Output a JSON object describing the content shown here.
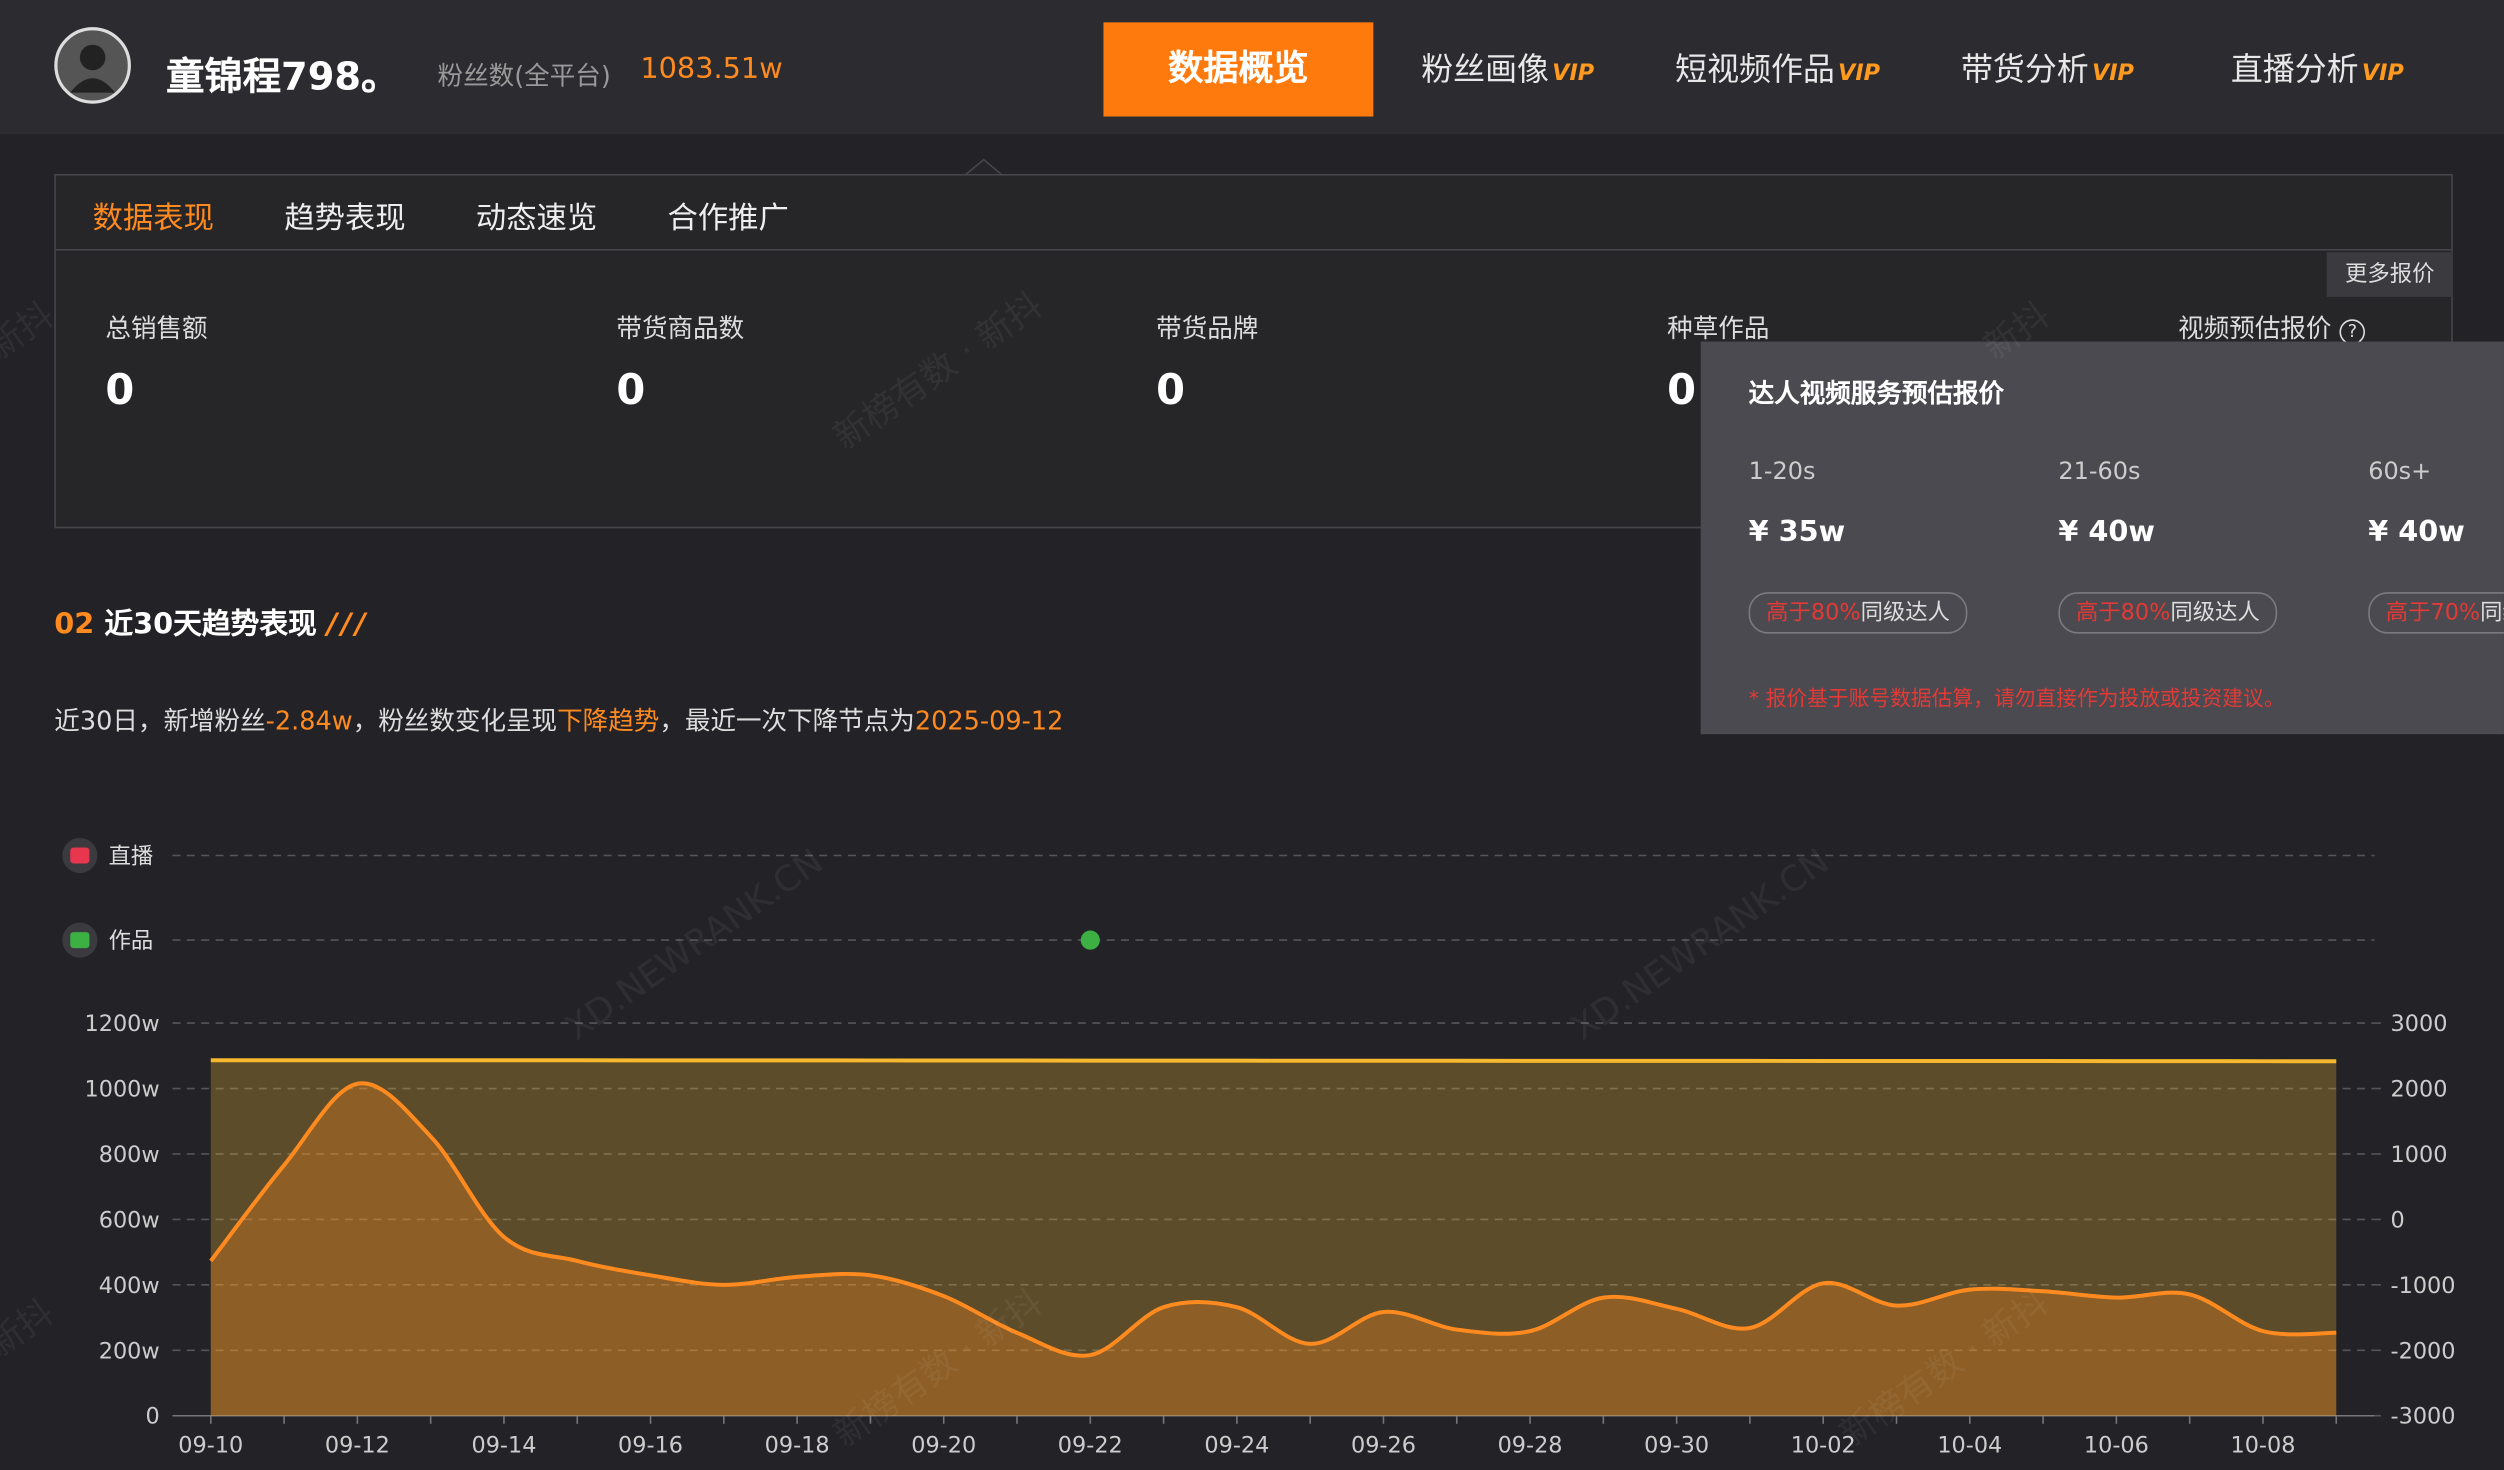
{
  "header": {
    "name": "童锦程798。",
    "fans_label": "粉丝数(全平台)",
    "fans_value": "1083.51w",
    "nav": [
      {
        "label": "数据概览"
      },
      {
        "label": "粉丝画像",
        "badge": "VIP"
      },
      {
        "label": "短视频作品",
        "badge": "VIP"
      },
      {
        "label": "带货分析",
        "badge": "VIP"
      },
      {
        "label": "直播分析",
        "badge": "VIP"
      }
    ]
  },
  "tabs": [
    "数据表现",
    "趋势表现",
    "动态速览",
    "合作推广"
  ],
  "metrics": [
    {
      "label": "总销售额",
      "value": 0
    },
    {
      "label": "带货商品数",
      "value": 0
    },
    {
      "label": "带货品牌",
      "value": 0
    },
    {
      "label": "种草作品",
      "value": 0
    }
  ],
  "quote": {
    "more": "更多报价",
    "label": "视频预估报价",
    "help": "?",
    "popup_title": "达人视频服务预估报价",
    "tiers": [
      {
        "duration": "1-20s",
        "price": "¥ 35w",
        "compare_prefix": "高于",
        "compare_value": "80%",
        "compare_suffix": "同级达人"
      },
      {
        "duration": "21-60s",
        "price": "¥ 40w",
        "compare_prefix": "高于",
        "compare_value": "80%",
        "compare_suffix": "同级达人"
      },
      {
        "duration": "60s+",
        "price": "¥ 40w",
        "compare_prefix": "高于",
        "compare_value": "70%",
        "compare_suffix": "同级达人"
      }
    ],
    "note": "* 报价基于账号数据估算，请勿直接作为投放或投资建议。"
  },
  "section": {
    "number": "02",
    "title": "近30天趋势表现"
  },
  "summary": [
    "近30日，新增粉丝",
    "-2.84w",
    "，粉丝数变化呈现",
    "下降趋势",
    "，最近一次下降节点为",
    "2025-09-12"
  ],
  "watermarks": [
    "新榜有数 · 新抖",
    "XD.NEWRANK.CN",
    "新抖"
  ],
  "chart_data": {
    "type": "line",
    "categories": [
      "09-10",
      null,
      "09-12",
      null,
      "09-14",
      null,
      "09-16",
      null,
      "09-18",
      null,
      "09-20",
      null,
      "09-22",
      null,
      "09-24",
      null,
      "09-26",
      null,
      "09-28",
      null,
      "09-30",
      null,
      "10-02",
      null,
      "10-04",
      null,
      "10-06",
      null,
      "10-08",
      null
    ],
    "event_rows": [
      {
        "label": "直播"
      },
      {
        "label": "作品",
        "x": [
          "09-22"
        ]
      }
    ],
    "series": [
      {
        "color": "#f5b82e",
        "axis": "y",
        "values": [
          1086.35,
          1086.5,
          1086.6,
          1086.5,
          1086.4,
          1086.3,
          1086.2,
          1086.1,
          1086.0,
          1085.9,
          1085.8,
          1085.6,
          1085.4,
          1085.3,
          1085.2,
          1085.0,
          1084.9,
          1084.8,
          1084.7,
          1084.6,
          1084.5,
          1084.4,
          1084.3,
          1084.2,
          1084.1,
          1084.0,
          1083.9,
          1083.8,
          1083.6,
          1083.51
        ]
      },
      {
        "color": "#ff8a1f",
        "axis": "y2",
        "values": [
          -634,
          829,
          2073,
          1268,
          -268,
          -634,
          -854,
          -1000,
          -878,
          -854,
          -1171,
          -1732,
          -2073,
          -1341,
          -1341,
          -1902,
          -1415,
          -1683,
          -1707,
          -1195,
          -1366,
          -1659,
          -976,
          -1317,
          -1073,
          -1098,
          -1195,
          -1146,
          -1707,
          -1732
        ]
      }
    ],
    "ylim": [
      0,
      1200
    ],
    "yticks": [
      0,
      {
        "value": 200,
        "label": "200w"
      },
      {
        "value": 400,
        "label": "400w"
      },
      {
        "value": 600,
        "label": "600w"
      },
      {
        "value": 800,
        "label": "800w"
      },
      {
        "value": 1000,
        "label": "1000w"
      },
      {
        "value": 1200,
        "label": "1200w"
      }
    ],
    "y2lim": [
      -3000,
      3000
    ],
    "y2ticks": [
      -3000,
      -2000,
      -1000,
      0,
      1000,
      2000,
      3000
    ],
    "grid": true
  }
}
